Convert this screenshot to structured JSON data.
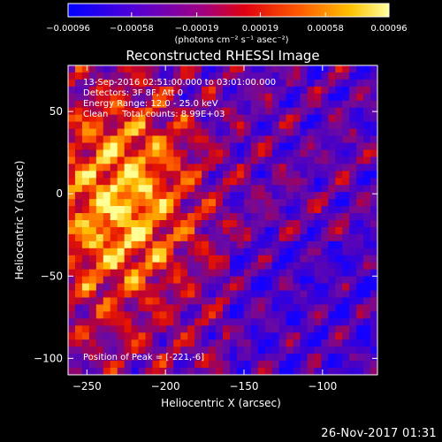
{
  "chart_data": {
    "type": "heatmap",
    "title": "Reconstructed RHESSI Image",
    "xlabel": "Heliocentric X (arcsec)",
    "ylabel": "Heliocentric Y (arcsec)",
    "xlim": [
      -262,
      -65
    ],
    "ylim": [
      -110,
      78
    ],
    "x_ticks": [
      -250,
      -200,
      -150,
      -100
    ],
    "x_tick_labels": [
      "−250",
      "−200",
      "−150",
      "−100"
    ],
    "y_ticks": [
      50,
      0,
      -50,
      -100
    ],
    "y_tick_labels": [
      "50",
      "0",
      "−50",
      "−100"
    ],
    "colorbar": {
      "min": -0.00096,
      "max": 0.00096,
      "ticks": [
        -0.00096,
        -0.00058,
        -0.00019,
        0.00019,
        0.00058,
        0.00096
      ],
      "tick_labels": [
        "−0.00096",
        "−0.00058",
        "−0.00019",
        "0.00019",
        "0.00058",
        "0.00096"
      ],
      "unit_label": "(photons cm⁻² s⁻¹ asec⁻²)",
      "colors": [
        "#0000ff",
        "#6a00c8",
        "#c8003c",
        "#ff2a00",
        "#ff9000",
        "#ffff80"
      ]
    },
    "annotations": [
      "13-Sep-2016 02:51:00.000 to 03:01:00.000",
      "Detectors: 3F 8F, Att 0",
      "Energy Range: 12.0 - 25.0 keV",
      "Clean     Total counts: 8.99E+03"
    ],
    "peak_label": "Position of Peak = [-221,-6]",
    "peak": [
      -221,
      -6
    ]
  },
  "footer": {
    "date_stamp": "26-Nov-2017 01:31"
  }
}
